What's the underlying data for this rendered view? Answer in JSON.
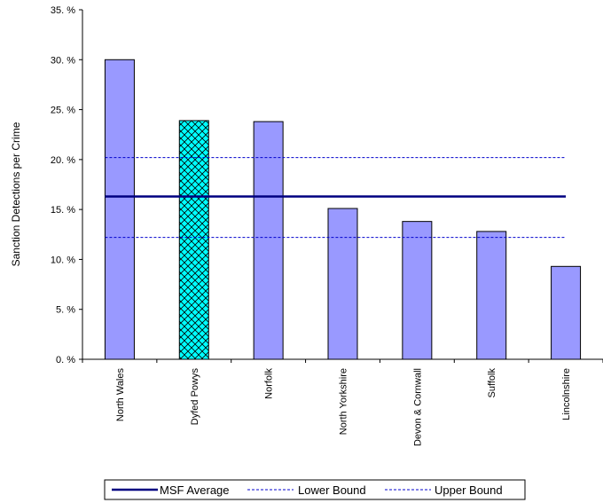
{
  "chart_data": {
    "type": "bar",
    "ylabel": "Sanction Detections per Crime",
    "ylim": [
      0,
      35
    ],
    "ytick_values": [
      0,
      5,
      10,
      15,
      20,
      25,
      30,
      35
    ],
    "ytick_labels": [
      "0.  %",
      "5.  %",
      "10.  %",
      "15.  %",
      "20.  %",
      "25.  %",
      "30.  %",
      "35.  %"
    ],
    "categories": [
      "North Wales",
      "Dyfed Powys",
      "Norfolk",
      "North Yorkshire",
      "Devon & Cornwall",
      "Suffolk",
      "Lincolnshire"
    ],
    "values": [
      30.0,
      23.9,
      23.8,
      15.1,
      13.8,
      12.8,
      9.3
    ],
    "highlight_category": "Dyfed Powys",
    "bar_color": "#9999ff",
    "highlight_color": "#00ffff",
    "grid": false,
    "reference_lines": [
      {
        "name": "MSF Average",
        "value": 16.3,
        "color": "#000080",
        "style": "solid"
      },
      {
        "name": "Lower Bound",
        "value": 12.2,
        "color": "#0000cc",
        "style": "dashed"
      },
      {
        "name": "Upper Bound",
        "value": 20.2,
        "color": "#0000cc",
        "style": "dashed"
      }
    ],
    "legend": {
      "placement": "bottom",
      "entries": [
        "MSF Average",
        "Lower Bound",
        "Upper Bound"
      ]
    }
  }
}
